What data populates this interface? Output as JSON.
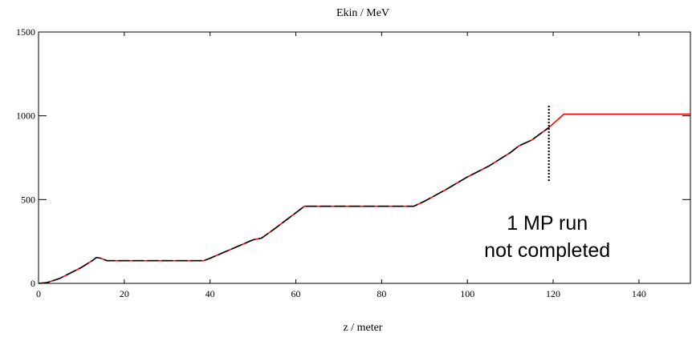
{
  "chart_data": {
    "type": "line",
    "title": "Ekin / MeV",
    "xlabel": "z / meter",
    "ylabel": "",
    "xlim": [
      0,
      152
    ],
    "ylim": [
      0,
      1500
    ],
    "x_ticks": [
      0,
      20,
      40,
      60,
      80,
      100,
      120,
      140
    ],
    "y_ticks": [
      0,
      500,
      1000,
      1500
    ],
    "grid": false,
    "legend": "none",
    "series": [
      {
        "color": "#ff0000",
        "dashed": false,
        "x": [
          0,
          2,
          5,
          10,
          12.5,
          13.5,
          14.5,
          16,
          20,
          30,
          38.5,
          40,
          45,
          50,
          52,
          55,
          62,
          70,
          80,
          87.5,
          90,
          95,
          100,
          105,
          110,
          112,
          115,
          119,
          122.5,
          130,
          140,
          152
        ],
        "y": [
          0,
          5,
          30,
          95,
          135,
          155,
          150,
          135,
          135,
          135,
          135,
          150,
          205,
          260,
          270,
          325,
          460,
          460,
          460,
          460,
          490,
          560,
          635,
          700,
          780,
          820,
          855,
          930,
          1010,
          1010,
          1010,
          1010
        ]
      },
      {
        "color": "#000000",
        "dashed": true,
        "x": [
          0,
          2,
          5,
          10,
          12.5,
          13.5,
          14.5,
          16,
          20,
          30,
          38.5,
          40,
          45,
          50,
          52,
          55,
          62,
          70,
          80,
          87.5,
          90,
          95,
          100,
          105,
          110,
          112,
          115,
          119
        ],
        "y": [
          0,
          5,
          30,
          95,
          135,
          155,
          150,
          135,
          135,
          135,
          135,
          150,
          205,
          260,
          270,
          325,
          460,
          460,
          460,
          460,
          490,
          560,
          635,
          700,
          780,
          820,
          855,
          930
        ]
      }
    ],
    "annotations": [
      {
        "text_lines": [
          "1 MP run",
          "not completed"
        ],
        "marker_x": 119,
        "marker_y_range": [
          610,
          1060
        ]
      }
    ]
  }
}
